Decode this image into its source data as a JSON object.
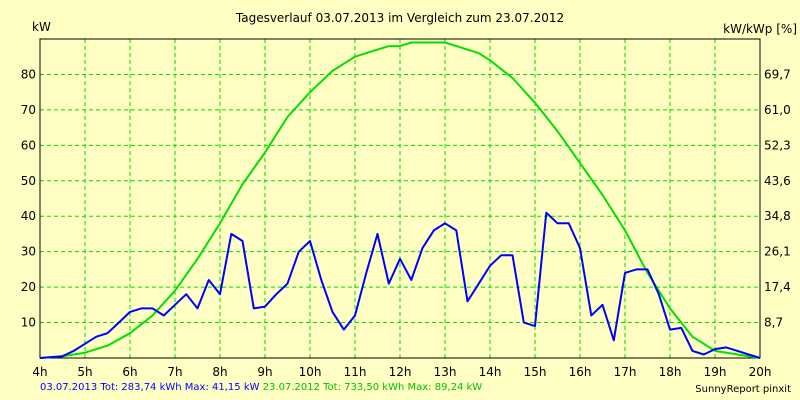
{
  "chart_data": {
    "type": "line",
    "title": "Tagesverlauf 03.07.2013 im Vergleich zum 23.07.2012",
    "ylabel_left": "kW",
    "ylabel_right": "kW/kWp [%]",
    "x_ticks": [
      "4h",
      "5h",
      "6h",
      "7h",
      "8h",
      "9h",
      "10h",
      "11h",
      "12h",
      "13h",
      "14h",
      "15h",
      "16h",
      "17h",
      "18h",
      "19h",
      "20h"
    ],
    "xlim": [
      4,
      20
    ],
    "ylim": [
      0,
      90
    ],
    "y_ticks": [
      10,
      20,
      30,
      40,
      50,
      60,
      70,
      80
    ],
    "y_ticks_right": [
      "8,7",
      "17,4",
      "26,1",
      "34,8",
      "43,6",
      "52,3",
      "61,0",
      "69,7"
    ],
    "grid": true,
    "series": [
      {
        "name": "03.07.2013",
        "color": "#0000ff",
        "x": [
          4.0,
          4.5,
          4.75,
          5.0,
          5.25,
          5.5,
          5.75,
          6.0,
          6.25,
          6.5,
          6.75,
          7.0,
          7.25,
          7.5,
          7.75,
          8.0,
          8.25,
          8.5,
          8.75,
          9.0,
          9.25,
          9.5,
          9.75,
          10.0,
          10.25,
          10.5,
          10.75,
          11.0,
          11.25,
          11.5,
          11.75,
          12.0,
          12.25,
          12.5,
          12.75,
          13.0,
          13.25,
          13.5,
          13.75,
          14.0,
          14.25,
          14.5,
          14.75,
          15.0,
          15.25,
          15.5,
          15.75,
          16.0,
          16.25,
          16.5,
          16.75,
          17.0,
          17.25,
          17.5,
          17.75,
          18.0,
          18.25,
          18.5,
          18.75,
          19.0,
          19.25,
          19.5,
          19.75,
          20.0
        ],
        "values": [
          0,
          0.5,
          2,
          4,
          6,
          7,
          10,
          13,
          14,
          14,
          12,
          15,
          18,
          14,
          22,
          18,
          35,
          33,
          14,
          14.5,
          18,
          21,
          30,
          33,
          22,
          13,
          8,
          12,
          24,
          35,
          21,
          28,
          22,
          31,
          36,
          38,
          36,
          16,
          21,
          26,
          29,
          29,
          10,
          9,
          41,
          38,
          38,
          31,
          12,
          15,
          5,
          24,
          25,
          25,
          18,
          8,
          8.5,
          2,
          1,
          2.5,
          3,
          2,
          1,
          0
        ]
      },
      {
        "name": "23.07.2012",
        "color": "#00e000",
        "x": [
          4.0,
          4.5,
          5.0,
          5.5,
          6.0,
          6.5,
          7.0,
          7.5,
          8.0,
          8.5,
          9.0,
          9.5,
          10.0,
          10.5,
          11.0,
          11.5,
          11.75,
          12.0,
          12.25,
          12.5,
          12.75,
          13.0,
          13.25,
          13.5,
          13.75,
          14.0,
          14.5,
          15.0,
          15.5,
          16.0,
          16.5,
          17.0,
          17.5,
          18.0,
          18.5,
          19.0,
          19.5,
          20.0
        ],
        "values": [
          0,
          0.5,
          1.5,
          3.5,
          7,
          12,
          19,
          28,
          38,
          49,
          58,
          68,
          75,
          81,
          85,
          87,
          88,
          88,
          89,
          89,
          89,
          89,
          88,
          87,
          86,
          84,
          79,
          72,
          64,
          55,
          46,
          36,
          24,
          14,
          6,
          2,
          1,
          0
        ]
      }
    ],
    "footer": [
      {
        "text": "03.07.2013 Tot: 283,74 kWh Max: 41,15 kW",
        "color": "#0000ff"
      },
      {
        "text": " 23.07.2012 Tot: 733,50 kWh Max: 89,24 kW",
        "color": "#00c000"
      }
    ],
    "credit": "SunnyReport pinxit"
  }
}
